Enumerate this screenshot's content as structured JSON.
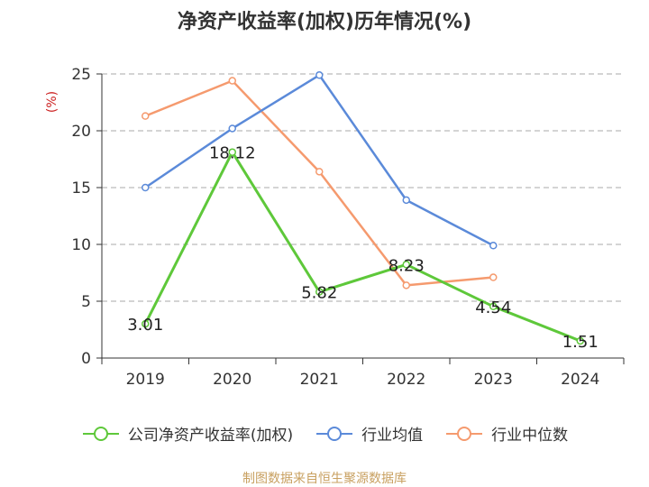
{
  "chart_data": {
    "type": "line",
    "title": "净资产收益率(加权)历年情况(%)",
    "ylabel": "(%)",
    "categories": [
      "2019",
      "2020",
      "2021",
      "2022",
      "2023",
      "2024"
    ],
    "ylim": [
      0,
      25
    ],
    "yticks": [
      "0",
      "5",
      "10",
      "15",
      "20",
      "25"
    ],
    "grid": "dashed-horizontal",
    "legend_position": "bottom",
    "series": [
      {
        "name": "公司净资产收益率(加权)",
        "color": "#5ec83a",
        "values": [
          3.01,
          18.12,
          5.82,
          8.23,
          4.54,
          1.51
        ],
        "labels": [
          "3.01",
          "18.12",
          "5.82",
          "8.23",
          "4.54",
          "1.51"
        ]
      },
      {
        "name": "行业均值",
        "color": "#5b8ad9",
        "values": [
          15.0,
          20.2,
          24.9,
          13.9,
          9.9,
          null
        ]
      },
      {
        "name": "行业中位数",
        "color": "#f59a6e",
        "values": [
          21.3,
          24.4,
          16.4,
          6.4,
          7.1,
          null
        ]
      }
    ]
  },
  "source_text": "制图数据来自恒生聚源数据库",
  "colors": {
    "axis": "#333333",
    "grid": "#aaaaaa",
    "ylabel": "#cc2222",
    "source": "#c8a060"
  }
}
